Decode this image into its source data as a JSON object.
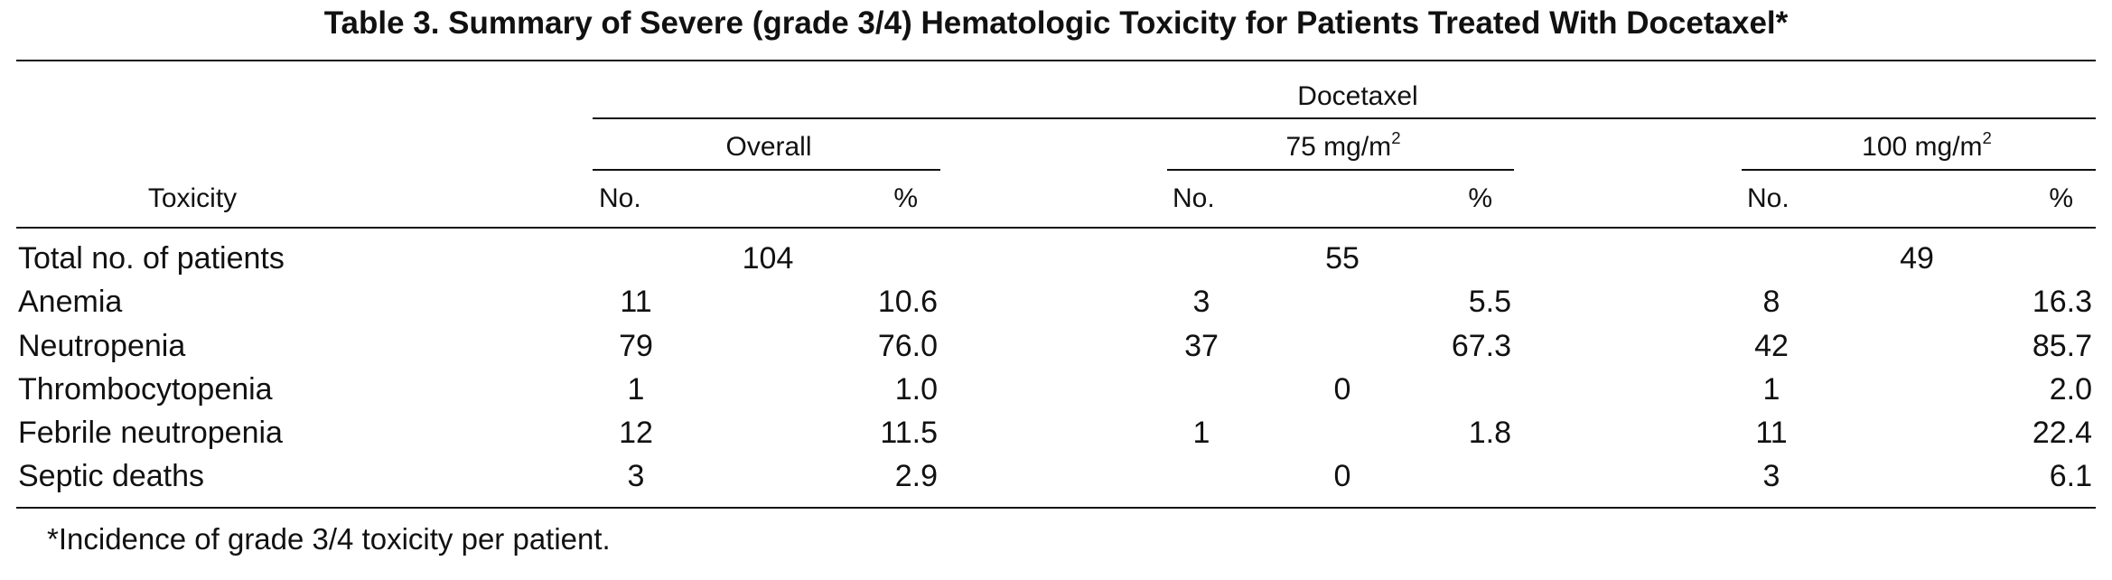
{
  "table": {
    "title": "Table 3.   Summary of Severe (grade 3/4) Hematologic Toxicity for Patients Treated With Docetaxel*",
    "spanner": "Docetaxel",
    "row_header": "Toxicity",
    "groups": [
      {
        "label": "Overall",
        "unit_sup": ""
      },
      {
        "label": "75 mg/m",
        "unit_sup": "2"
      },
      {
        "label": "100 mg/m",
        "unit_sup": "2"
      }
    ],
    "subheaders": {
      "no": "No.",
      "pct": "%"
    },
    "total_row": {
      "label": "Total no. of patients",
      "values": [
        "104",
        "55",
        "49"
      ]
    },
    "rows": [
      {
        "label": "Anemia",
        "cells": [
          [
            "11",
            "10.6"
          ],
          [
            "3",
            "5.5"
          ],
          [
            "8",
            "16.3"
          ]
        ]
      },
      {
        "label": "Neutropenia",
        "cells": [
          [
            "79",
            "76.0"
          ],
          [
            "37",
            "67.3"
          ],
          [
            "42",
            "85.7"
          ]
        ]
      },
      {
        "label": "Thrombocytopenia",
        "cells": [
          [
            "1",
            "1.0"
          ],
          [
            "0",
            ""
          ],
          [
            "1",
            "2.0"
          ]
        ]
      },
      {
        "label": "Febrile neutropenia",
        "cells": [
          [
            "12",
            "11.5"
          ],
          [
            "1",
            "1.8"
          ],
          [
            "11",
            "22.4"
          ]
        ]
      },
      {
        "label": "Septic deaths",
        "cells": [
          [
            "3",
            "2.9"
          ],
          [
            "0",
            ""
          ],
          [
            "3",
            "6.1"
          ]
        ]
      }
    ],
    "footnote": "*Incidence of grade 3/4 toxicity per patient."
  }
}
